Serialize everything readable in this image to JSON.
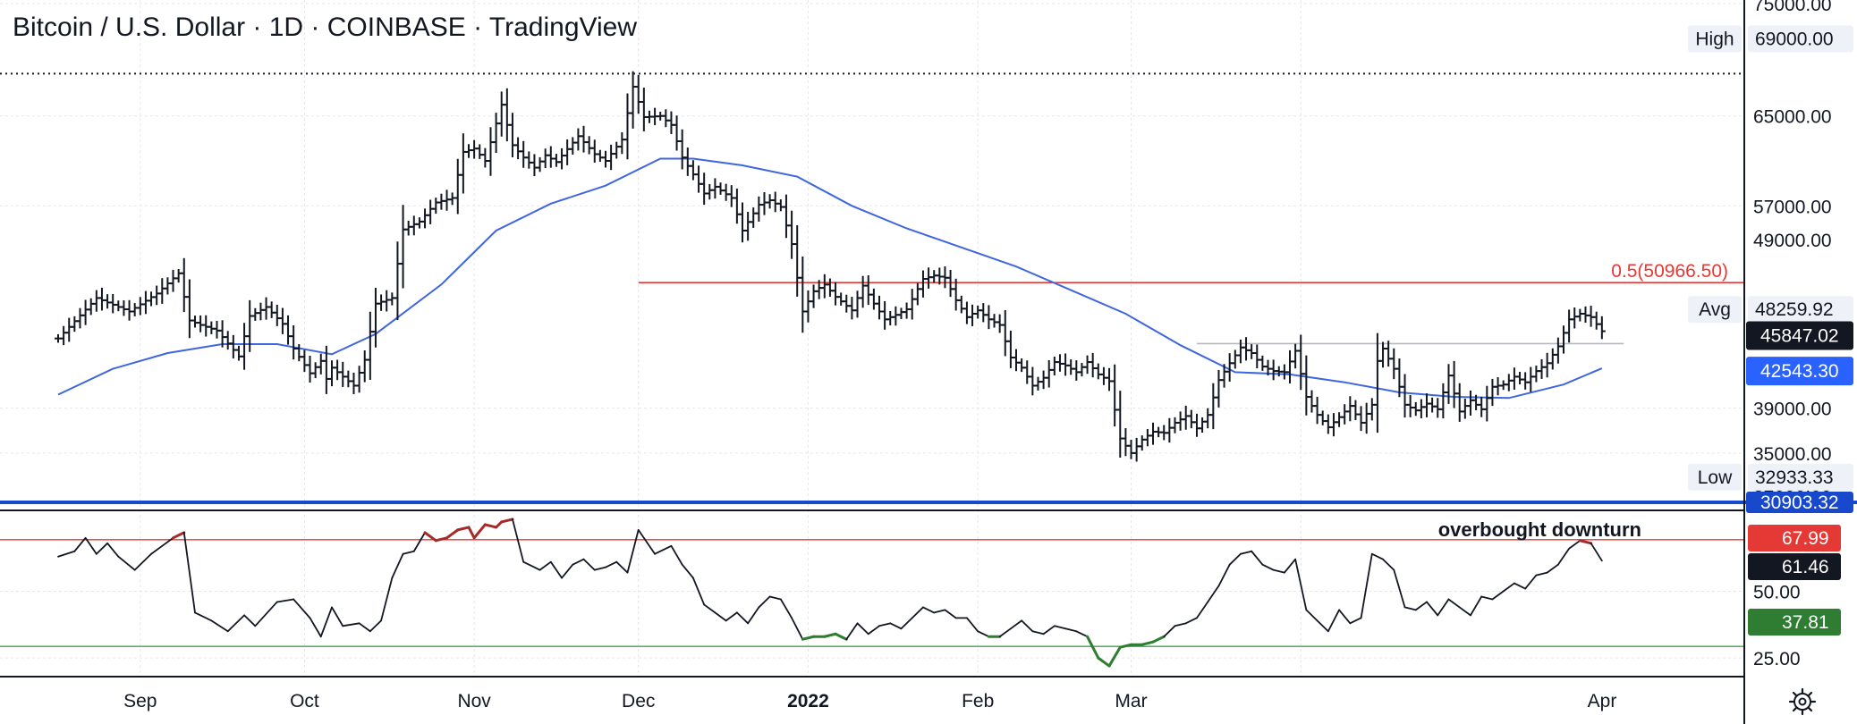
{
  "header": {
    "title": "Bitcoin / U.S. Dollar · 1D · COINBASE · TradingView"
  },
  "chart_data": [
    {
      "type": "ohlc",
      "title": "Bitcoin / U.S. Dollar · 1D · COINBASE · TradingView",
      "ylim": [
        30300,
        75000
      ],
      "y_ticks": [
        "75000.00",
        "65000.00",
        "57000.00",
        "39000.00",
        "35000.00"
      ],
      "x_ticks": [
        {
          "label": "Sep",
          "date": "2021-09-01"
        },
        {
          "label": "Oct",
          "date": "2021-10-01"
        },
        {
          "label": "Nov",
          "date": "2021-11-01"
        },
        {
          "label": "Dec",
          "date": "2021-12-01"
        },
        {
          "label": "2022",
          "date": "2022-01-01",
          "bold": true
        },
        {
          "label": "Feb",
          "date": "2022-02-01"
        },
        {
          "label": "Mar",
          "date": "2022-03-01"
        },
        {
          "label": "Apr",
          "date": "2022-04-01"
        }
      ],
      "date_range": [
        "2021-08-17",
        "2022-04-01"
      ],
      "price_series": {
        "name": "BTCUSD",
        "color": "#131722",
        "close": [
          [
            0,
            45200
          ],
          [
            7,
            48800
          ],
          [
            13,
            47600
          ],
          [
            18,
            49200
          ],
          [
            22,
            51000
          ],
          [
            24,
            46800
          ],
          [
            26,
            46400
          ],
          [
            29,
            45900
          ],
          [
            33,
            43600
          ],
          [
            35,
            47200
          ],
          [
            38,
            48000
          ],
          [
            41,
            46500
          ],
          [
            43,
            44300
          ],
          [
            46,
            42100
          ],
          [
            48,
            43200
          ],
          [
            49,
            41600
          ],
          [
            50,
            42600
          ],
          [
            54,
            41000
          ],
          [
            56,
            43300
          ],
          [
            58,
            48300
          ],
          [
            61,
            48800
          ],
          [
            63,
            54900
          ],
          [
            66,
            55600
          ],
          [
            69,
            57300
          ],
          [
            72,
            57700
          ],
          [
            74,
            61800
          ],
          [
            76,
            62100
          ],
          [
            78,
            61000
          ],
          [
            81,
            66000
          ],
          [
            83,
            62400
          ],
          [
            85,
            61300
          ],
          [
            87,
            60400
          ],
          [
            89,
            61500
          ],
          [
            91,
            60900
          ],
          [
            95,
            63200
          ],
          [
            98,
            61600
          ],
          [
            100,
            61000
          ],
          [
            103,
            62900
          ],
          [
            105,
            67600
          ],
          [
            107,
            64900
          ],
          [
            110,
            65000
          ],
          [
            112,
            64200
          ],
          [
            114,
            61300
          ],
          [
            116,
            59800
          ],
          [
            118,
            58100
          ],
          [
            120,
            58700
          ],
          [
            123,
            57700
          ],
          [
            125,
            54800
          ],
          [
            128,
            57100
          ],
          [
            130,
            57500
          ],
          [
            132,
            56900
          ],
          [
            134,
            53600
          ],
          [
            136,
            47600
          ],
          [
            138,
            49400
          ],
          [
            140,
            50000
          ],
          [
            142,
            48900
          ],
          [
            145,
            47700
          ],
          [
            147,
            49900
          ],
          [
            149,
            48300
          ],
          [
            151,
            46900
          ],
          [
            153,
            47300
          ],
          [
            155,
            47800
          ],
          [
            158,
            50500
          ],
          [
            160,
            50800
          ],
          [
            162,
            50600
          ],
          [
            164,
            48600
          ],
          [
            166,
            47100
          ],
          [
            168,
            47700
          ],
          [
            170,
            46900
          ],
          [
            172,
            46400
          ],
          [
            174,
            43500
          ],
          [
            176,
            42600
          ],
          [
            178,
            41000
          ],
          [
            180,
            41700
          ],
          [
            182,
            43100
          ],
          [
            184,
            42800
          ],
          [
            186,
            42200
          ],
          [
            188,
            43100
          ],
          [
            190,
            42000
          ],
          [
            192,
            41400
          ],
          [
            194,
            36300
          ],
          [
            196,
            35000
          ],
          [
            198,
            36200
          ],
          [
            200,
            36900
          ],
          [
            202,
            36800
          ],
          [
            204,
            37700
          ],
          [
            206,
            38300
          ],
          [
            208,
            37200
          ],
          [
            210,
            38400
          ],
          [
            212,
            41500
          ],
          [
            214,
            43000
          ],
          [
            216,
            44400
          ],
          [
            218,
            43900
          ],
          [
            220,
            42700
          ],
          [
            222,
            42300
          ],
          [
            224,
            42200
          ],
          [
            226,
            44100
          ],
          [
            228,
            40000
          ],
          [
            230,
            38400
          ],
          [
            232,
            37300
          ],
          [
            234,
            38200
          ],
          [
            236,
            39200
          ],
          [
            238,
            37700
          ],
          [
            240,
            39300
          ],
          [
            241,
            43200
          ],
          [
            242,
            44300
          ],
          [
            244,
            42500
          ],
          [
            246,
            39300
          ],
          [
            248,
            38800
          ],
          [
            250,
            39400
          ],
          [
            252,
            38900
          ],
          [
            254,
            41900
          ],
          [
            256,
            38700
          ],
          [
            258,
            39700
          ],
          [
            260,
            38900
          ],
          [
            262,
            40900
          ],
          [
            264,
            41100
          ],
          [
            266,
            41800
          ],
          [
            268,
            41300
          ],
          [
            270,
            42300
          ],
          [
            272,
            43000
          ],
          [
            274,
            44500
          ],
          [
            276,
            46900
          ],
          [
            278,
            47400
          ],
          [
            280,
            47100
          ],
          [
            282,
            45847
          ]
        ]
      },
      "moving_average": {
        "color": "#3f66df",
        "values": [
          [
            0,
            40200
          ],
          [
            10,
            42500
          ],
          [
            20,
            43900
          ],
          [
            30,
            44700
          ],
          [
            40,
            44700
          ],
          [
            50,
            43800
          ],
          [
            58,
            45600
          ],
          [
            70,
            50000
          ],
          [
            80,
            54800
          ],
          [
            90,
            57200
          ],
          [
            100,
            58800
          ],
          [
            110,
            61200
          ],
          [
            116,
            61200
          ],
          [
            125,
            60600
          ],
          [
            135,
            59600
          ],
          [
            145,
            57000
          ],
          [
            155,
            55000
          ],
          [
            165,
            53300
          ],
          [
            175,
            51600
          ],
          [
            185,
            49500
          ],
          [
            195,
            47400
          ],
          [
            205,
            44600
          ],
          [
            215,
            42200
          ],
          [
            225,
            42000
          ],
          [
            235,
            41300
          ],
          [
            245,
            40400
          ],
          [
            255,
            40000
          ],
          [
            265,
            39900
          ],
          [
            275,
            41100
          ],
          [
            282,
            42543
          ]
        ]
      },
      "levels": [
        {
          "label": "0.5(50966.50)",
          "value": 50966.5,
          "color": "#e53935",
          "from_day": 106
        },
        {
          "name": "High",
          "label": "High",
          "value": 69000,
          "display": "69000.00",
          "style": "dotted"
        },
        {
          "name": "Low",
          "label": "Low",
          "value": 32933.33,
          "display": "32933.33"
        },
        {
          "name": "Avg",
          "label": "Avg",
          "value": 48259.92,
          "display": "48259.92"
        },
        {
          "name": "resistance",
          "value": 44900,
          "color": "#b5b8bd",
          "from_day": 208,
          "to_day": 286
        },
        {
          "name": "support",
          "value": 30903.32,
          "display": "30903.32",
          "color": "#1848cc"
        }
      ],
      "price_badges": [
        {
          "value": 45847.02,
          "display": "45847.02",
          "bg": "#131722",
          "fg": "#ffffff"
        },
        {
          "value": 42543.3,
          "display": "42543.30",
          "bg": "#2a62ff",
          "fg": "#ffffff"
        },
        {
          "value": 30903.32,
          "display": "30903.32",
          "bg": "#1848cc",
          "fg": "#ffffff"
        }
      ],
      "partially_visible_axis_labels": [
        "49000.00",
        "32000.00"
      ]
    },
    {
      "type": "line",
      "name": "RSI",
      "ylim": [
        18,
        80
      ],
      "y_ticks": [
        "50.00",
        "25.00"
      ],
      "overbought": 70,
      "oversold": 30,
      "overbought_color": "#e53935",
      "oversold_color": "#43a047",
      "annotation": "overbought downturn",
      "values": [
        [
          0,
          63
        ],
        [
          3,
          65
        ],
        [
          5,
          70
        ],
        [
          7,
          64
        ],
        [
          9,
          68
        ],
        [
          11,
          63
        ],
        [
          14,
          58
        ],
        [
          17,
          64
        ],
        [
          19,
          67
        ],
        [
          21,
          70
        ],
        [
          23,
          72
        ],
        [
          25,
          42
        ],
        [
          28,
          39
        ],
        [
          31,
          35
        ],
        [
          34,
          41
        ],
        [
          36,
          37
        ],
        [
          40,
          46
        ],
        [
          43,
          47
        ],
        [
          46,
          40
        ],
        [
          48,
          33
        ],
        [
          50,
          44
        ],
        [
          52,
          37
        ],
        [
          55,
          38
        ],
        [
          57,
          35
        ],
        [
          59,
          39
        ],
        [
          61,
          55
        ],
        [
          63,
          64
        ],
        [
          65,
          65
        ],
        [
          67,
          72
        ],
        [
          69,
          69
        ],
        [
          71,
          70
        ],
        [
          73,
          73
        ],
        [
          75,
          74
        ],
        [
          76,
          70
        ],
        [
          78,
          75
        ],
        [
          80,
          74
        ],
        [
          81,
          76
        ],
        [
          83,
          77
        ],
        [
          85,
          61
        ],
        [
          88,
          58
        ],
        [
          90,
          61
        ],
        [
          92,
          55
        ],
        [
          94,
          60
        ],
        [
          96,
          62
        ],
        [
          98,
          58
        ],
        [
          100,
          59
        ],
        [
          102,
          61
        ],
        [
          104,
          57
        ],
        [
          106,
          73
        ],
        [
          109,
          64
        ],
        [
          112,
          67
        ],
        [
          114,
          60
        ],
        [
          116,
          55
        ],
        [
          118,
          45
        ],
        [
          120,
          42
        ],
        [
          122,
          39
        ],
        [
          124,
          42
        ],
        [
          126,
          38
        ],
        [
          128,
          44
        ],
        [
          130,
          48
        ],
        [
          132,
          47
        ],
        [
          134,
          40
        ],
        [
          136,
          32
        ],
        [
          138,
          33
        ],
        [
          140,
          33
        ],
        [
          142,
          34
        ],
        [
          144,
          32
        ],
        [
          146,
          38
        ],
        [
          148,
          34
        ],
        [
          150,
          37
        ],
        [
          152,
          38
        ],
        [
          154,
          36
        ],
        [
          156,
          40
        ],
        [
          158,
          44
        ],
        [
          160,
          42
        ],
        [
          162,
          43
        ],
        [
          164,
          40
        ],
        [
          166,
          40
        ],
        [
          168,
          35
        ],
        [
          170,
          33
        ],
        [
          172,
          33
        ],
        [
          174,
          36
        ],
        [
          176,
          39
        ],
        [
          178,
          35
        ],
        [
          180,
          34
        ],
        [
          182,
          37
        ],
        [
          184,
          36
        ],
        [
          186,
          35
        ],
        [
          188,
          33
        ],
        [
          190,
          25
        ],
        [
          192,
          22
        ],
        [
          194,
          29
        ],
        [
          196,
          30
        ],
        [
          198,
          30
        ],
        [
          200,
          31
        ],
        [
          202,
          33
        ],
        [
          204,
          37
        ],
        [
          206,
          38
        ],
        [
          208,
          40
        ],
        [
          210,
          46
        ],
        [
          212,
          52
        ],
        [
          214,
          60
        ],
        [
          216,
          64
        ],
        [
          218,
          65
        ],
        [
          220,
          60
        ],
        [
          222,
          58
        ],
        [
          224,
          57
        ],
        [
          226,
          62
        ],
        [
          228,
          43
        ],
        [
          230,
          39
        ],
        [
          232,
          35
        ],
        [
          234,
          43
        ],
        [
          236,
          38
        ],
        [
          238,
          40
        ],
        [
          240,
          64
        ],
        [
          242,
          62
        ],
        [
          244,
          58
        ],
        [
          246,
          44
        ],
        [
          248,
          43
        ],
        [
          250,
          46
        ],
        [
          252,
          41
        ],
        [
          254,
          47
        ],
        [
          256,
          44
        ],
        [
          258,
          41
        ],
        [
          260,
          48
        ],
        [
          262,
          47
        ],
        [
          264,
          50
        ],
        [
          266,
          53
        ],
        [
          268,
          51
        ],
        [
          270,
          56
        ],
        [
          272,
          57
        ],
        [
          274,
          60
        ],
        [
          276,
          66
        ],
        [
          278,
          69
        ],
        [
          280,
          68
        ],
        [
          282,
          61.46
        ]
      ],
      "badges": [
        {
          "value": 67.99,
          "display": "67.99",
          "bg": "#e53935",
          "fg": "#ffffff"
        },
        {
          "value": 61.46,
          "display": "61.46",
          "bg": "#131722",
          "fg": "#ffffff"
        },
        {
          "value": 37.81,
          "display": "37.81",
          "bg": "#2e7d32",
          "fg": "#ffffff"
        }
      ]
    }
  ],
  "toolbar": {
    "settings_icon": "gear-icon"
  }
}
